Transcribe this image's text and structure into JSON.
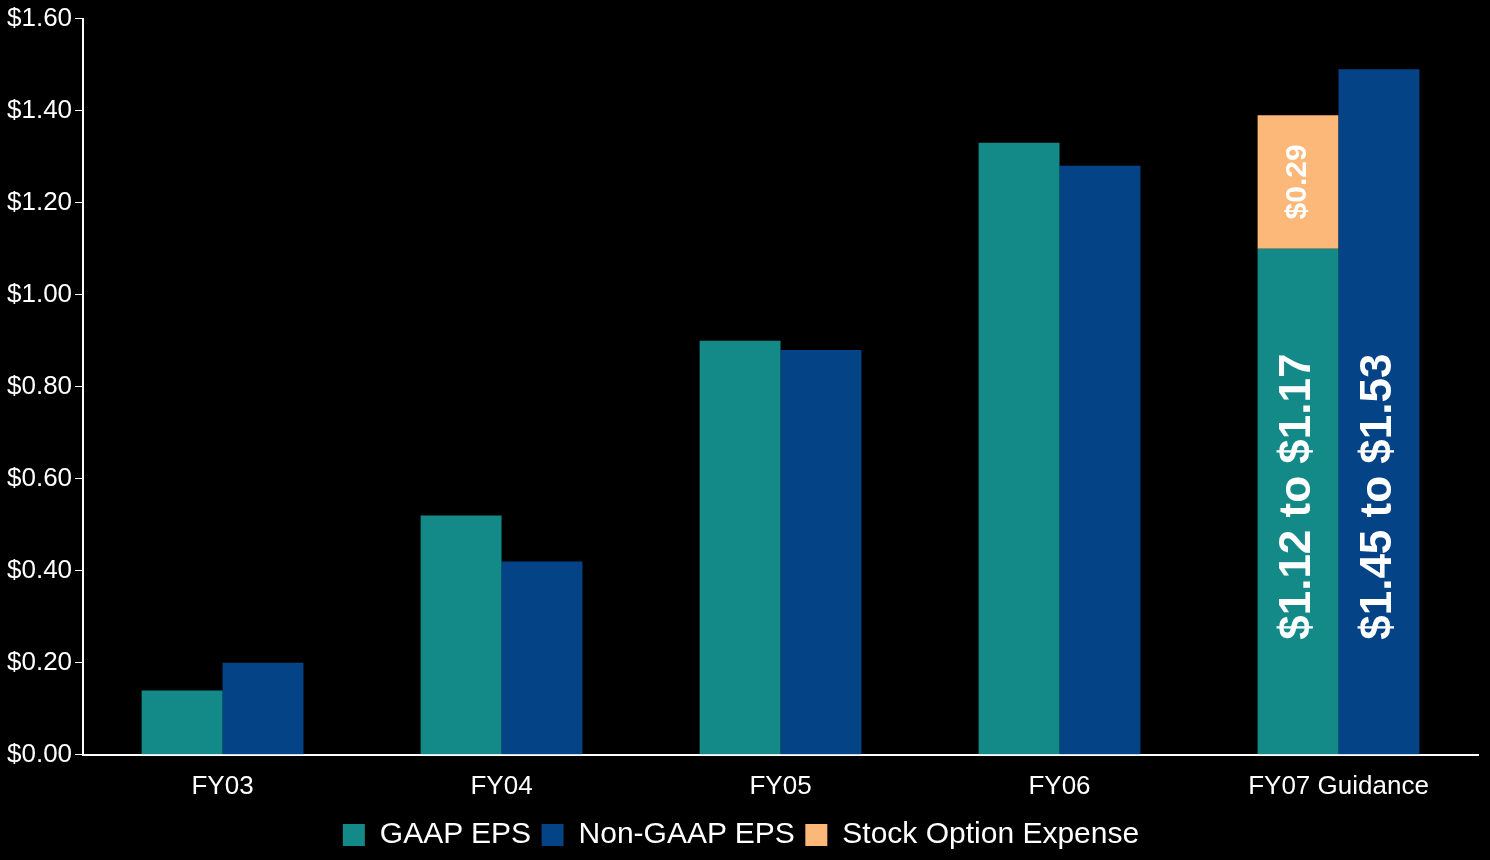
{
  "chart_data": {
    "type": "bar",
    "categories": [
      "FY03",
      "FY04",
      "FY05",
      "FY06",
      "FY07 Guidance"
    ],
    "series": [
      {
        "name": "GAAP EPS",
        "color": "#138a87",
        "values": [
          0.14,
          0.52,
          0.9,
          1.33,
          1.1
        ]
      },
      {
        "name": "Non-GAAP EPS",
        "color": "#044385",
        "values": [
          0.2,
          0.42,
          0.88,
          1.28,
          1.49
        ]
      },
      {
        "name": "Stock Option Expense",
        "color": "#fbb878",
        "values": [
          null,
          null,
          null,
          null,
          0.29
        ],
        "base": [
          null,
          null,
          null,
          null,
          1.1
        ],
        "value_labels": [
          null,
          null,
          null,
          null,
          "$0.29"
        ]
      }
    ],
    "ylim": [
      0,
      1.6
    ],
    "yticks": [
      {
        "value": 0,
        "label": "$0.00"
      },
      {
        "value": 0.2,
        "label": "$0.20"
      },
      {
        "value": 0.4,
        "label": "$0.40"
      },
      {
        "value": 0.6,
        "label": "$0.60"
      },
      {
        "value": 0.8,
        "label": "$0.80"
      },
      {
        "value": 1.0,
        "label": "$1.00"
      },
      {
        "value": 1.2,
        "label": "$1.20"
      },
      {
        "value": 1.4,
        "label": "$1.40"
      },
      {
        "value": 1.6,
        "label": "$1.60"
      }
    ],
    "annotations": [
      {
        "text": "$1.12 to $1.17",
        "x": "FY07 Guidance",
        "y": 0.25
      },
      {
        "text": "$1.45 to $1.53",
        "x": "FY07 Guidance",
        "y": 0.25
      }
    ],
    "grid": false,
    "legend": "bottom"
  }
}
